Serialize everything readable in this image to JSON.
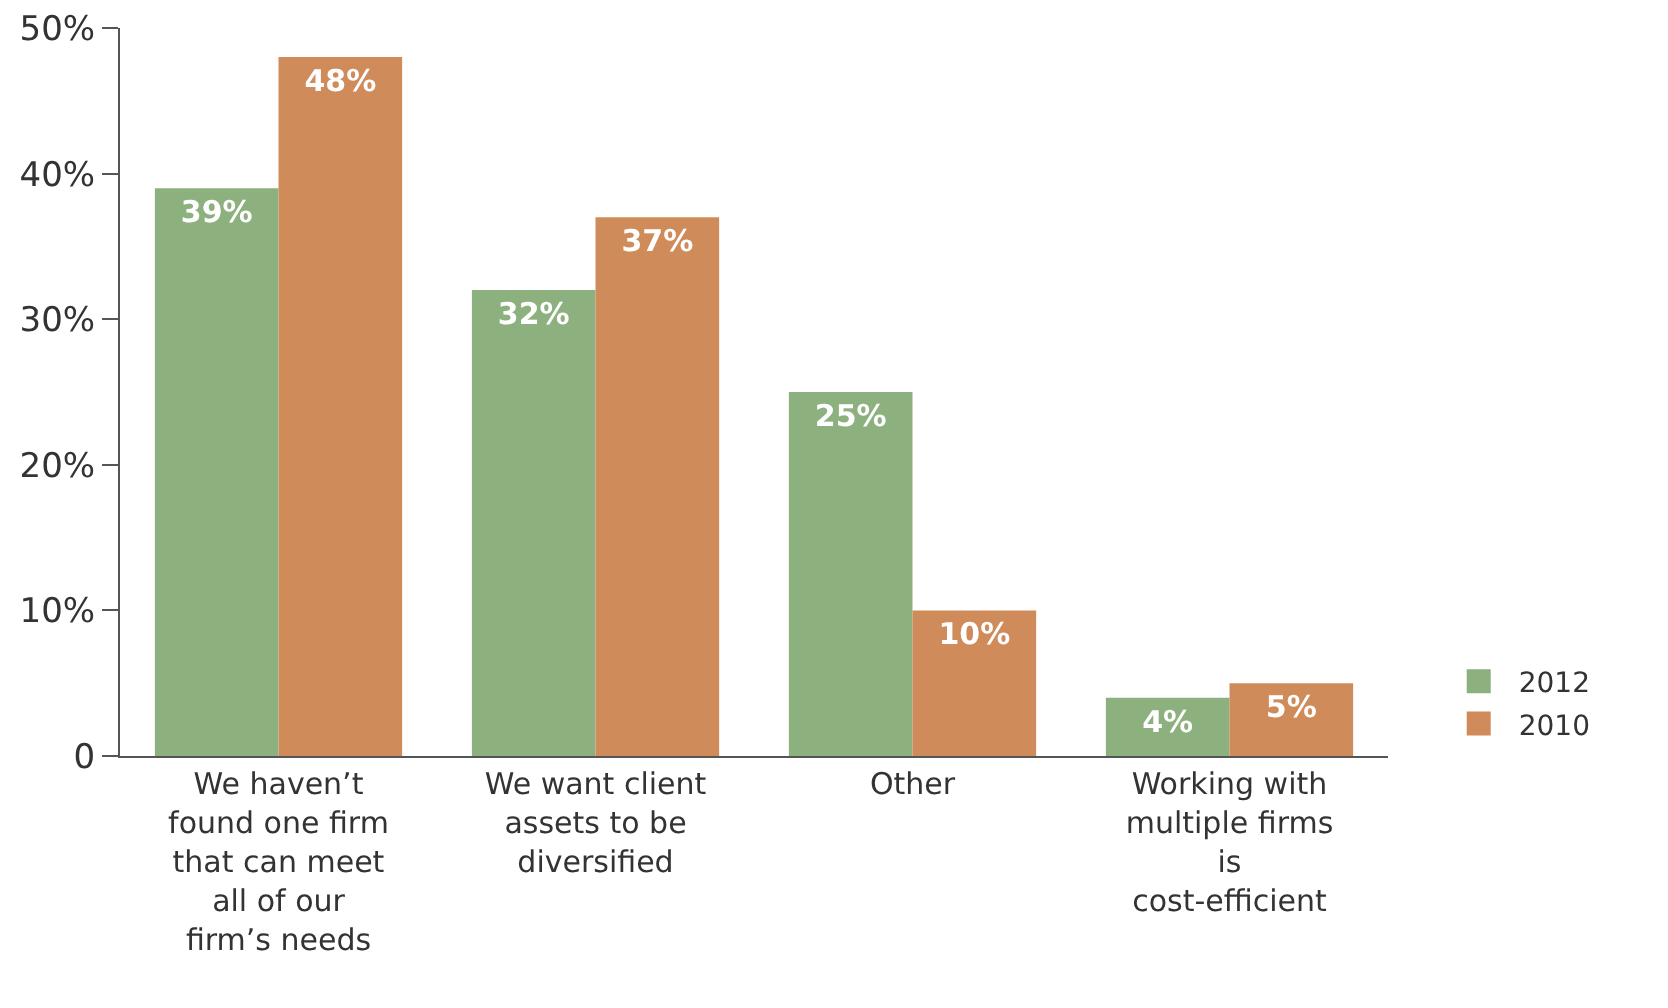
{
  "chart_data": {
    "type": "bar",
    "categories": [
      "We haven’t found one firm that can meet all of our firm’s needs",
      "We want client assets to be diversified",
      "Other",
      "Working with multiple firms is cost-efficient"
    ],
    "series": [
      {
        "name": "2012",
        "color": "#8db07f",
        "values": [
          39,
          32,
          25,
          4
        ],
        "value_labels": [
          "39%",
          "32%",
          "25%",
          "4%"
        ]
      },
      {
        "name": "2010",
        "color": "#cf8c5a",
        "values": [
          48,
          37,
          10,
          5
        ],
        "value_labels": [
          "48%",
          "37%",
          "10%",
          "5%"
        ]
      }
    ],
    "ylim": [
      0,
      50
    ],
    "yticks": [
      0,
      {
        "value": 10,
        "label": "10%"
      },
      {
        "value": 20,
        "label": "20%"
      },
      {
        "value": 30,
        "label": "30%"
      },
      {
        "value": 40,
        "label": "40%"
      },
      {
        "value": 50,
        "label": "50%"
      }
    ],
    "grid": false,
    "legend": "right"
  }
}
